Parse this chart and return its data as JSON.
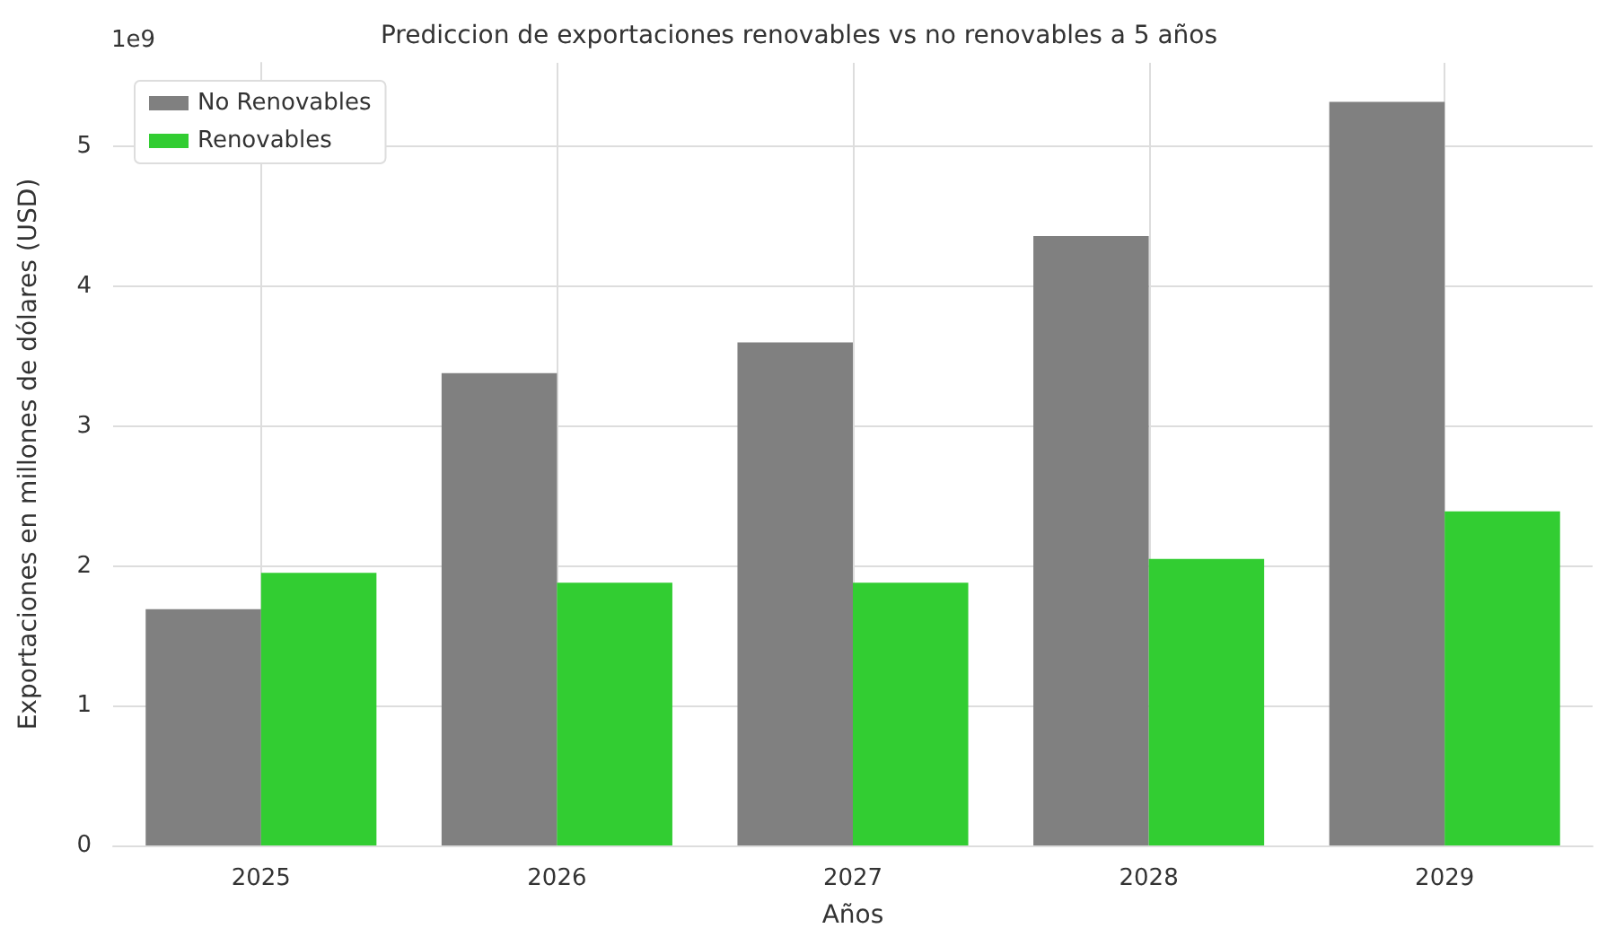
{
  "chart_data": {
    "type": "bar",
    "title": "Prediccion de exportaciones renovables vs no renovables a 5 años",
    "xlabel": "Años",
    "ylabel": "Exportaciones en millones de dólares (USD)",
    "categories": [
      "2025",
      "2026",
      "2027",
      "2028",
      "2029"
    ],
    "series": [
      {
        "name": "No Renovables",
        "color": "#808080",
        "values": [
          1.69,
          3.38,
          3.6,
          4.36,
          5.32
        ]
      },
      {
        "name": "Renovables",
        "color": "#32cd32",
        "values": [
          1.95,
          1.88,
          1.88,
          2.05,
          2.39
        ]
      }
    ],
    "ylim": [
      0,
      5.6
    ],
    "yticks": [
      0,
      1,
      2,
      3,
      4,
      5
    ],
    "annotations": [
      "1e9"
    ],
    "grid": true,
    "legend": "top left"
  }
}
